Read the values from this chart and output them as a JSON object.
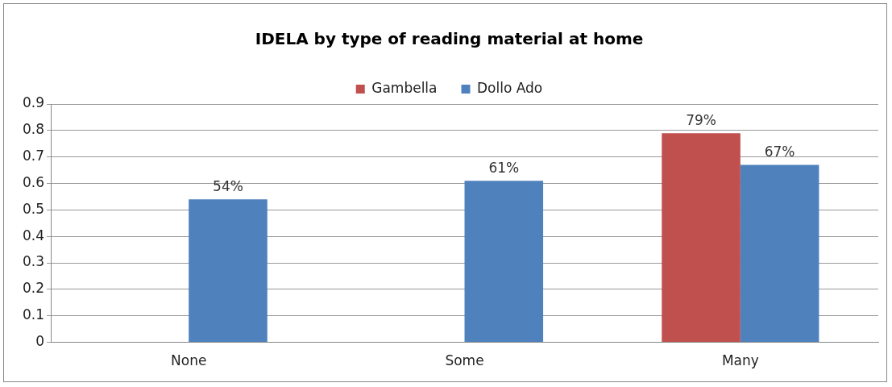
{
  "chart_data": {
    "type": "bar",
    "title": "IDELA by type of reading material at home",
    "categories": [
      "None",
      "Some",
      "Many"
    ],
    "series": [
      {
        "name": "Gambella",
        "color": "#c0504d",
        "values": [
          null,
          null,
          0.79
        ],
        "value_labels": [
          null,
          null,
          "79%"
        ]
      },
      {
        "name": "Dollo Ado",
        "color": "#4f81bd",
        "values": [
          0.54,
          0.61,
          0.67
        ],
        "value_labels": [
          "54%",
          "61%",
          "67%"
        ]
      }
    ],
    "ylim": [
      0,
      0.9
    ],
    "yticks": [
      0,
      0.1,
      0.2,
      0.3,
      0.4,
      0.5,
      0.6,
      0.7,
      0.8,
      0.9
    ],
    "grid": "y",
    "legend": "top"
  }
}
